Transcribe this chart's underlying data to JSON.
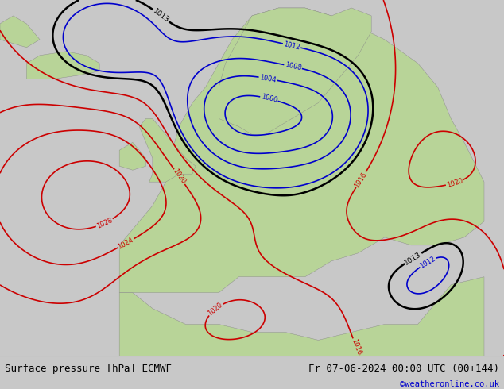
{
  "title_left": "Surface pressure [hPa] ECMWF",
  "title_right": "Fr 07-06-2024 00:00 UTC (00+144)",
  "watermark": "©weatheronline.co.uk",
  "ocean_color": "#c8c8c8",
  "land_color": "#b8d498",
  "contour_color_low": "#0000cc",
  "contour_color_high": "#cc0000",
  "contour_color_1013": "#000000",
  "label_fontsize": 6,
  "title_fontsize": 9,
  "watermark_color": "#0000cc",
  "footer_bg": "#ffffff",
  "lw_low": 1.2,
  "lw_high": 1.2,
  "lw_1013": 1.8
}
